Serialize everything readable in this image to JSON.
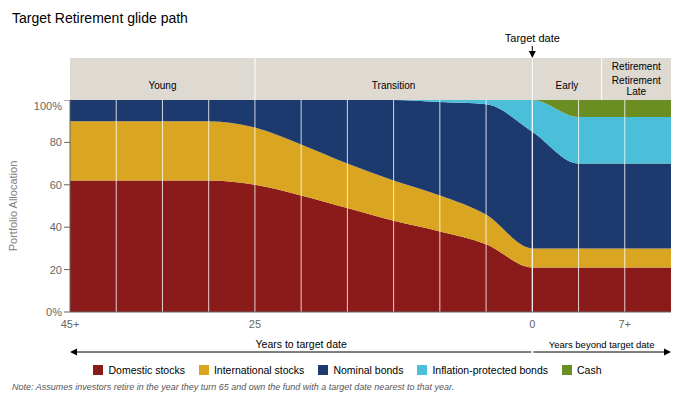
{
  "chart_data": {
    "type": "area",
    "title": "Target Retirement glide path",
    "ylabel": "Portfolio Allocation",
    "categories": [
      "45+",
      null,
      null,
      null,
      "25",
      null,
      null,
      null,
      null,
      null,
      "0",
      null,
      "7+",
      null
    ],
    "series": [
      {
        "name": "Domestic stocks",
        "color": "#8B1A1A",
        "values": [
          62,
          62,
          62,
          62,
          60,
          55,
          49,
          43,
          38,
          32,
          21,
          21,
          21,
          21
        ]
      },
      {
        "name": "International stocks",
        "color": "#DAA520",
        "values": [
          28,
          28,
          28,
          28,
          27,
          24,
          21,
          19,
          17,
          14,
          9,
          9,
          9,
          9
        ]
      },
      {
        "name": "Nominal bonds",
        "color": "#1C3A6E",
        "values": [
          10,
          10,
          10,
          10,
          13,
          21,
          30,
          38,
          44,
          52,
          55,
          40,
          40,
          40
        ]
      },
      {
        "name": "Inflation-protected bonds",
        "color": "#4BBFDA",
        "values": [
          0,
          0,
          0,
          0,
          0,
          0,
          0,
          0,
          1,
          2,
          15,
          22,
          22,
          22
        ]
      },
      {
        "name": "Cash",
        "color": "#6B8E23",
        "values": [
          0,
          0,
          0,
          0,
          0,
          0,
          0,
          0,
          0,
          0,
          0,
          8,
          8,
          8
        ]
      }
    ],
    "ylim": [
      0,
      100
    ],
    "yticks": [
      {
        "value": 0,
        "label": "0%"
      },
      20,
      40,
      60,
      80,
      {
        "value": 100,
        "label": "100%"
      }
    ],
    "stacked": true,
    "grid": true,
    "legend": "bottom",
    "annotations": {
      "target_date": "Target date",
      "phases": [
        "Young",
        "Transition",
        "Early",
        "Retirement\nLate"
      ],
      "phase_group": "Retirement",
      "left_arrow": "Years to target date",
      "right_arrow": "Years beyond target date",
      "note": "Note: Assumes investors retire in the year they turn 65 and own the fund with a target date nearest to that year."
    }
  }
}
